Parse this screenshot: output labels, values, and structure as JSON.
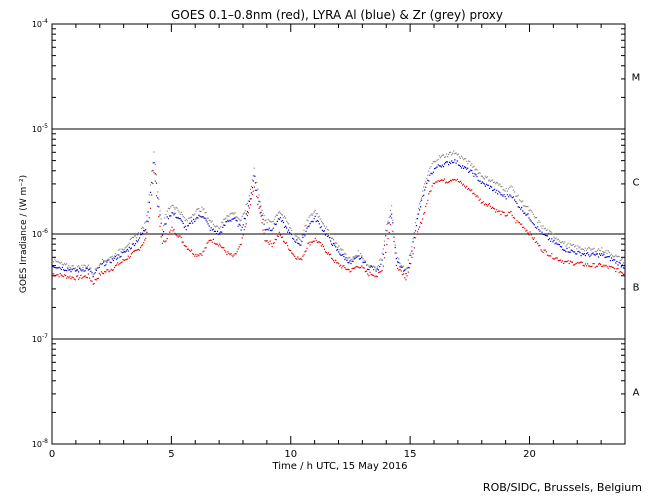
{
  "chart_data": {
    "type": "line",
    "title": "GOES 0.1–0.8nm (red), LYRA Al (blue) & Zr (grey) proxy",
    "xlabel": "Time / h UTC, 15 May 2016",
    "ylabel": "GOES Irradiance / (W m⁻²)",
    "xlim": [
      0,
      24
    ],
    "ylim_log10": [
      -8,
      -4
    ],
    "x_ticks": [
      0,
      5,
      10,
      15,
      20
    ],
    "x_tick_labels": [
      "0",
      "5",
      "10",
      "15",
      "20"
    ],
    "y_ticks": [
      {
        "label": "10",
        "exp": "-8",
        "value": -8
      },
      {
        "label": "10",
        "exp": "-7",
        "value": -7
      },
      {
        "label": "10",
        "exp": "-6",
        "value": -6
      },
      {
        "label": "10",
        "exp": "-5",
        "value": -5
      },
      {
        "label": "10",
        "exp": "-4",
        "value": -4
      }
    ],
    "class_lines": [
      -7,
      -6,
      -5
    ],
    "class_labels": [
      {
        "label": "A",
        "pos": -7.5
      },
      {
        "label": "B",
        "pos": -6.5
      },
      {
        "label": "C",
        "pos": -5.5
      },
      {
        "label": "M",
        "pos": -4.5
      }
    ],
    "series": [
      {
        "name": "GOES 0.1-0.8nm",
        "color": "#dd0000",
        "x": [
          0,
          0.5,
          1,
          1.5,
          1.7,
          2,
          2.5,
          3,
          3.3,
          3.6,
          3.9,
          4.1,
          4.25,
          4.4,
          4.6,
          4.8,
          5,
          5.3,
          5.6,
          6,
          6.3,
          6.6,
          7,
          7.3,
          7.6,
          7.9,
          8.2,
          8.45,
          8.65,
          8.9,
          9.2,
          9.5,
          9.8,
          10.1,
          10.4,
          10.7,
          11,
          11.3,
          11.6,
          11.9,
          12.2,
          12.5,
          12.8,
          13,
          13.2,
          13.4,
          13.6,
          13.8,
          14,
          14.2,
          14.4,
          14.6,
          14.8,
          15,
          15.2,
          15.5,
          15.8,
          16,
          16.2,
          16.5,
          16.8,
          17,
          17.3,
          17.6,
          18,
          18.3,
          18.6,
          19,
          19.2,
          19.4,
          19.6,
          20,
          20.5,
          21,
          21.5,
          22,
          22.5,
          23,
          23.5,
          24
        ],
        "log": [
          -6.38,
          -6.4,
          -6.42,
          -6.4,
          -6.47,
          -6.38,
          -6.33,
          -6.25,
          -6.2,
          -6.15,
          -6.05,
          -5.75,
          -5.4,
          -5.75,
          -6.1,
          -6.03,
          -5.95,
          -6.02,
          -6.12,
          -6.2,
          -6.18,
          -6.05,
          -6.1,
          -6.18,
          -6.22,
          -6.1,
          -5.8,
          -5.55,
          -5.75,
          -6.05,
          -6.1,
          -6.0,
          -6.1,
          -6.2,
          -6.25,
          -6.1,
          -6.05,
          -6.12,
          -6.2,
          -6.28,
          -6.32,
          -6.35,
          -6.3,
          -6.33,
          -6.38,
          -6.38,
          -6.4,
          -6.35,
          -6.1,
          -5.85,
          -6.3,
          -6.35,
          -6.42,
          -6.3,
          -6.05,
          -5.85,
          -5.6,
          -5.5,
          -5.48,
          -5.5,
          -5.47,
          -5.5,
          -5.55,
          -5.6,
          -5.7,
          -5.72,
          -5.78,
          -5.82,
          -5.8,
          -5.88,
          -5.9,
          -6.0,
          -6.15,
          -6.22,
          -6.27,
          -6.28,
          -6.3,
          -6.3,
          -6.33,
          -6.38
        ]
      },
      {
        "name": "LYRA Al proxy",
        "color": "#0000cc",
        "x": [
          0,
          0.5,
          1,
          1.5,
          1.7,
          2,
          2.5,
          3,
          3.3,
          3.6,
          3.9,
          4.1,
          4.25,
          4.4,
          4.6,
          4.8,
          5,
          5.3,
          5.6,
          6,
          6.3,
          6.6,
          7,
          7.3,
          7.6,
          7.9,
          8.2,
          8.45,
          8.65,
          8.9,
          9.2,
          9.5,
          9.8,
          10.1,
          10.4,
          10.7,
          11,
          11.3,
          11.6,
          11.9,
          12.2,
          12.5,
          12.8,
          13,
          13.2,
          13.4,
          13.6,
          13.8,
          14,
          14.2,
          14.4,
          14.6,
          14.8,
          15,
          15.2,
          15.5,
          15.8,
          16,
          16.2,
          16.5,
          16.8,
          17,
          17.3,
          17.6,
          18,
          18.3,
          18.6,
          19,
          19.2,
          19.4,
          19.6,
          20,
          20.5,
          21,
          21.5,
          22,
          22.5,
          23,
          23.5,
          24
        ],
        "log": [
          -6.3,
          -6.33,
          -6.35,
          -6.33,
          -6.4,
          -6.3,
          -6.25,
          -6.18,
          -6.12,
          -6.05,
          -5.95,
          -5.6,
          -5.3,
          -5.65,
          -6.0,
          -5.85,
          -5.8,
          -5.85,
          -5.95,
          -5.85,
          -5.82,
          -5.95,
          -6.0,
          -5.88,
          -5.85,
          -5.95,
          -5.75,
          -5.45,
          -5.7,
          -5.95,
          -5.95,
          -5.85,
          -5.95,
          -6.05,
          -6.1,
          -5.92,
          -5.85,
          -5.95,
          -6.05,
          -6.15,
          -6.22,
          -6.28,
          -6.22,
          -6.25,
          -6.32,
          -6.32,
          -6.35,
          -6.25,
          -5.95,
          -5.8,
          -6.25,
          -6.32,
          -6.38,
          -6.22,
          -5.95,
          -5.65,
          -5.45,
          -5.38,
          -5.35,
          -5.33,
          -5.3,
          -5.33,
          -5.38,
          -5.42,
          -5.52,
          -5.55,
          -5.6,
          -5.65,
          -5.62,
          -5.7,
          -5.75,
          -5.85,
          -6.0,
          -6.08,
          -6.15,
          -6.18,
          -6.2,
          -6.2,
          -6.25,
          -6.32
        ]
      },
      {
        "name": "LYRA Zr proxy",
        "color": "#888888",
        "x": [
          0,
          0.5,
          1,
          1.5,
          1.7,
          2,
          2.5,
          3,
          3.3,
          3.6,
          3.9,
          4.1,
          4.25,
          4.4,
          4.6,
          4.8,
          5,
          5.3,
          5.6,
          6,
          6.3,
          6.6,
          7,
          7.3,
          7.6,
          7.9,
          8.2,
          8.45,
          8.65,
          8.9,
          9.2,
          9.5,
          9.8,
          10.1,
          10.4,
          10.7,
          11,
          11.3,
          11.6,
          11.9,
          12.2,
          12.5,
          12.8,
          13,
          13.2,
          13.4,
          13.6,
          13.8,
          14,
          14.2,
          14.4,
          14.6,
          14.8,
          15,
          15.2,
          15.5,
          15.8,
          16,
          16.2,
          16.5,
          16.8,
          17,
          17.3,
          17.6,
          18,
          18.3,
          18.6,
          19,
          19.2,
          19.4,
          19.6,
          20,
          20.5,
          21,
          21.5,
          22,
          22.5,
          23,
          23.5,
          24
        ],
        "log": [
          -6.25,
          -6.3,
          -6.32,
          -6.3,
          -6.38,
          -6.27,
          -6.22,
          -6.13,
          -6.06,
          -6.0,
          -5.9,
          -5.52,
          -5.2,
          -5.58,
          -5.95,
          -5.78,
          -5.72,
          -5.78,
          -5.88,
          -5.78,
          -5.76,
          -5.88,
          -5.94,
          -5.82,
          -5.8,
          -5.88,
          -5.68,
          -5.38,
          -5.64,
          -5.88,
          -5.88,
          -5.78,
          -5.88,
          -6.0,
          -6.05,
          -5.86,
          -5.78,
          -5.88,
          -6.0,
          -6.1,
          -6.18,
          -6.25,
          -6.18,
          -6.22,
          -6.3,
          -6.3,
          -6.32,
          -6.2,
          -5.9,
          -5.75,
          -6.2,
          -6.3,
          -6.35,
          -6.18,
          -5.9,
          -5.6,
          -5.38,
          -5.3,
          -5.27,
          -5.25,
          -5.22,
          -5.25,
          -5.3,
          -5.35,
          -5.45,
          -5.48,
          -5.52,
          -5.58,
          -5.55,
          -5.62,
          -5.68,
          -5.78,
          -5.93,
          -6.02,
          -6.1,
          -6.13,
          -6.15,
          -6.15,
          -6.2,
          -6.27
        ]
      }
    ]
  },
  "credit": "ROB/SIDC, Brussels, Belgium"
}
